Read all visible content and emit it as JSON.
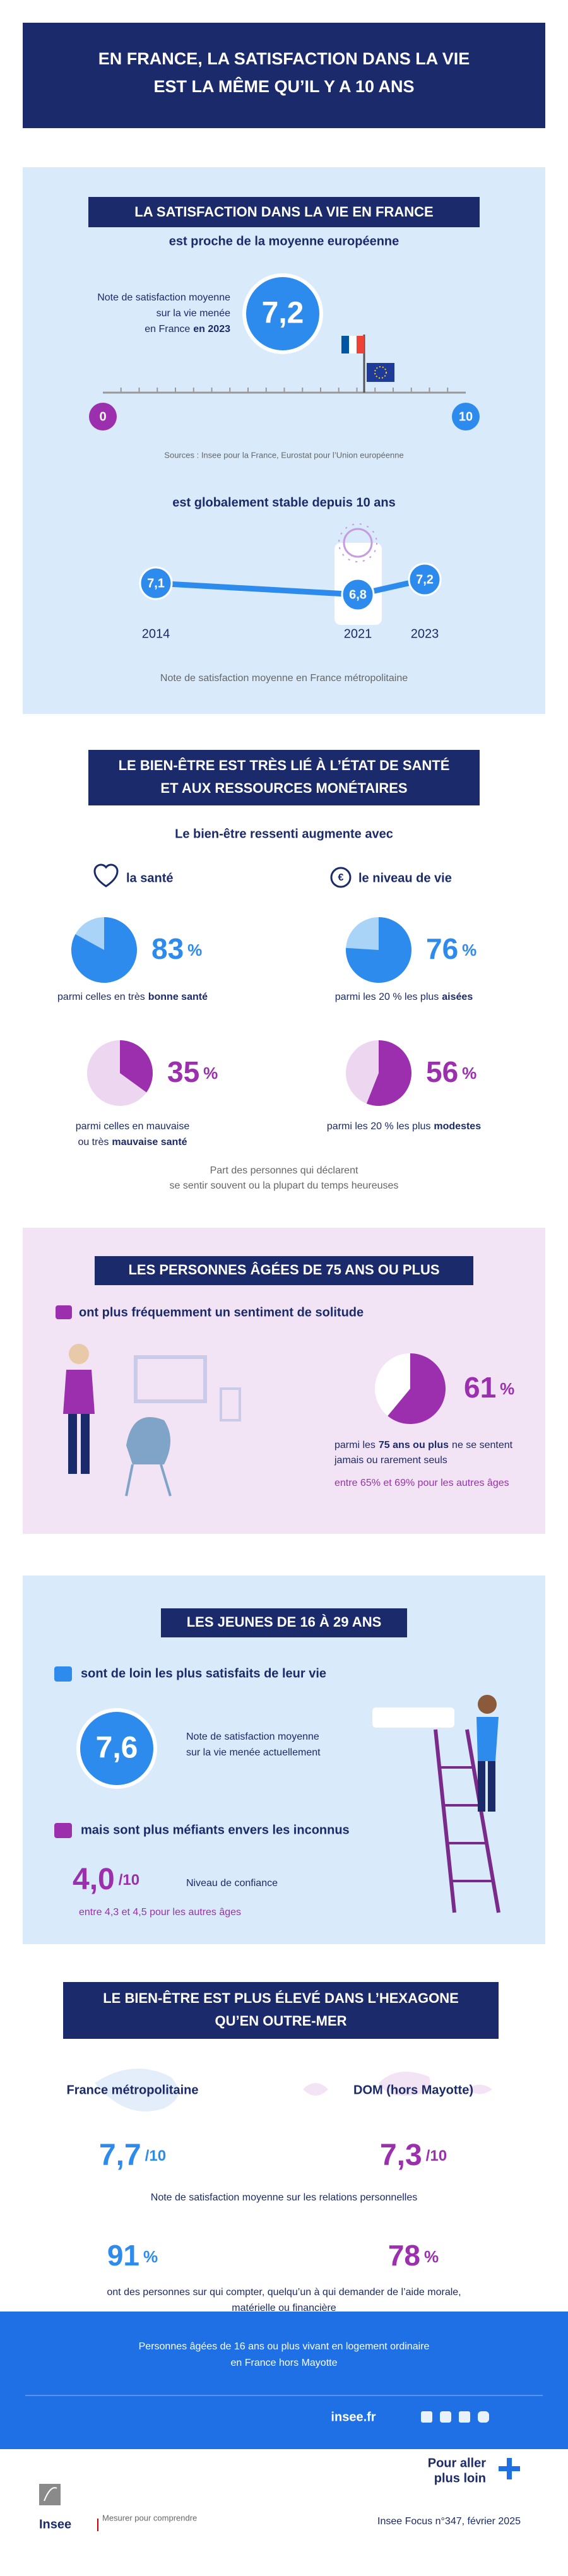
{
  "header": {
    "title": [
      "EN FRANCE, LA SATISFACTION DANS LA VIE",
      "EST LA MÊME QU’IL Y A 10 ANS"
    ]
  },
  "satisfaction": {
    "title": "LA SATISFACTION DANS LA VIE EN FRANCE",
    "subtitle": "est proche de la moyenne européenne",
    "score_note": [
      "Note de satisfaction moyenne",
      "sur la vie menée",
      [
        {
          "text": "en France"
        },
        {
          "text": "en 2023",
          "bold": true
        }
      ]
    ],
    "score": {
      "value": 7.2,
      "label": "7,2"
    },
    "scale": {
      "min": 0,
      "max": 10
    },
    "sources": "Sources : Insee pour la France, Eurostat pour l’Union européenne",
    "trend_title": "est globalement stable depuis 10 ans",
    "trend": [
      {
        "year": "2014",
        "value": 7.1,
        "label": "7,1"
      },
      {
        "year": "2021",
        "value": 6.8,
        "label": "6,8"
      },
      {
        "year": "2023",
        "value": 7.2,
        "label": "7,2"
      }
    ],
    "trend_caption": "Note de satisfaction moyenne en France métropolitaine"
  },
  "health": {
    "title": [
      "LE BIEN-ÊTRE EST TRÈS LIÉ À L’ÉTAT DE SANTÉ",
      "ET AUX RESSOURCES MONÉTAIRES"
    ],
    "intro": "Le bien-être ressenti augmente avec",
    "health_heading": "la santé",
    "income_heading": "le niveau de vie",
    "pies": [
      {
        "value": 83,
        "unit": "%",
        "caption": [
          [
            {
              "text": "parmi celles en très"
            },
            {
              "text": "bonne santé",
              "bold": true
            }
          ]
        ]
      },
      {
        "value": 76,
        "unit": "%",
        "caption": [
          [
            {
              "text": "parmi les 20 % les plus"
            },
            {
              "text": "aisées",
              "bold": true
            }
          ]
        ]
      },
      {
        "value": 35,
        "unit": "%",
        "caption": [
          [
            {
              "text": "parmi celles en mauvaise"
            }
          ],
          [
            {
              "text": "ou très"
            },
            {
              "text": "mauvaise santé",
              "bold": true
            }
          ]
        ]
      },
      {
        "value": 56,
        "unit": "%",
        "caption": [
          [
            {
              "text": "parmi les 20 % les plus"
            },
            {
              "text": "modestes",
              "bold": true
            }
          ]
        ]
      }
    ],
    "note": [
      "Part des personnes qui déclarent",
      "se sentir souvent ou la plupart du temps heureuses"
    ]
  },
  "elderly": {
    "title": "LES PERSONNES ÂGÉES DE 75 ANS OU PLUS",
    "statement": "ont plus fréquemment un sentiment de solitude",
    "pie": {
      "value": 61,
      "unit": "%"
    },
    "caption": [
      [
        {
          "text": "parmi les"
        },
        {
          "text": "75 ans ou plus",
          "bold": true
        },
        {
          "text": "ne se sentent"
        }
      ],
      [
        {
          "text": "jamais ou rarement seuls"
        }
      ]
    ],
    "comparison": "entre 65% et 69% pour les autres âges"
  },
  "young": {
    "title": "LES JEUNES DE 16 À 29 ANS",
    "statement": "sont de loin les plus satisfaits de leur vie",
    "score": "7,6",
    "score_note": [
      "Note de satisfaction moyenne",
      "sur la vie menée actuellement"
    ],
    "statement2": "mais sont plus méfiants envers les inconnus",
    "trust": {
      "score": "4,0",
      "out_of": "/10",
      "label": "Niveau de confiance"
    },
    "comparison": "entre 4,3 et 4,5 pour les autres âges"
  },
  "territory": {
    "title": [
      "LE BIEN-ÊTRE EST PLUS ÉLEVÉ DANS L’HEXAGONE",
      "QU’EN OUTRE-MER"
    ],
    "regions": [
      {
        "name": "France métropolitaine",
        "score": "7,7",
        "out_of": "/10",
        "share": 91,
        "unit": "%"
      },
      {
        "name": "DOM (hors Mayotte)",
        "score": "7,3",
        "out_of": "/10",
        "share": 78,
        "unit": "%"
      }
    ],
    "score_caption": "Note de satisfaction moyenne sur les relations personnelles",
    "share_caption": [
      "ont des personnes sur qui compter, quelqu’un à qui demander de l’aide morale,",
      "matérielle ou financière"
    ]
  },
  "footer": {
    "scope": [
      "Personnes âgées de 16 ans ou plus vivant en logement ordinaire",
      "en France hors Mayotte"
    ],
    "website": "insee.fr",
    "logo": "Insee",
    "tagline": "Mesurer pour comprendre",
    "more": [
      "Pour aller",
      "plus loin"
    ],
    "reference": "Insee Focus n°347, février 2025"
  }
}
